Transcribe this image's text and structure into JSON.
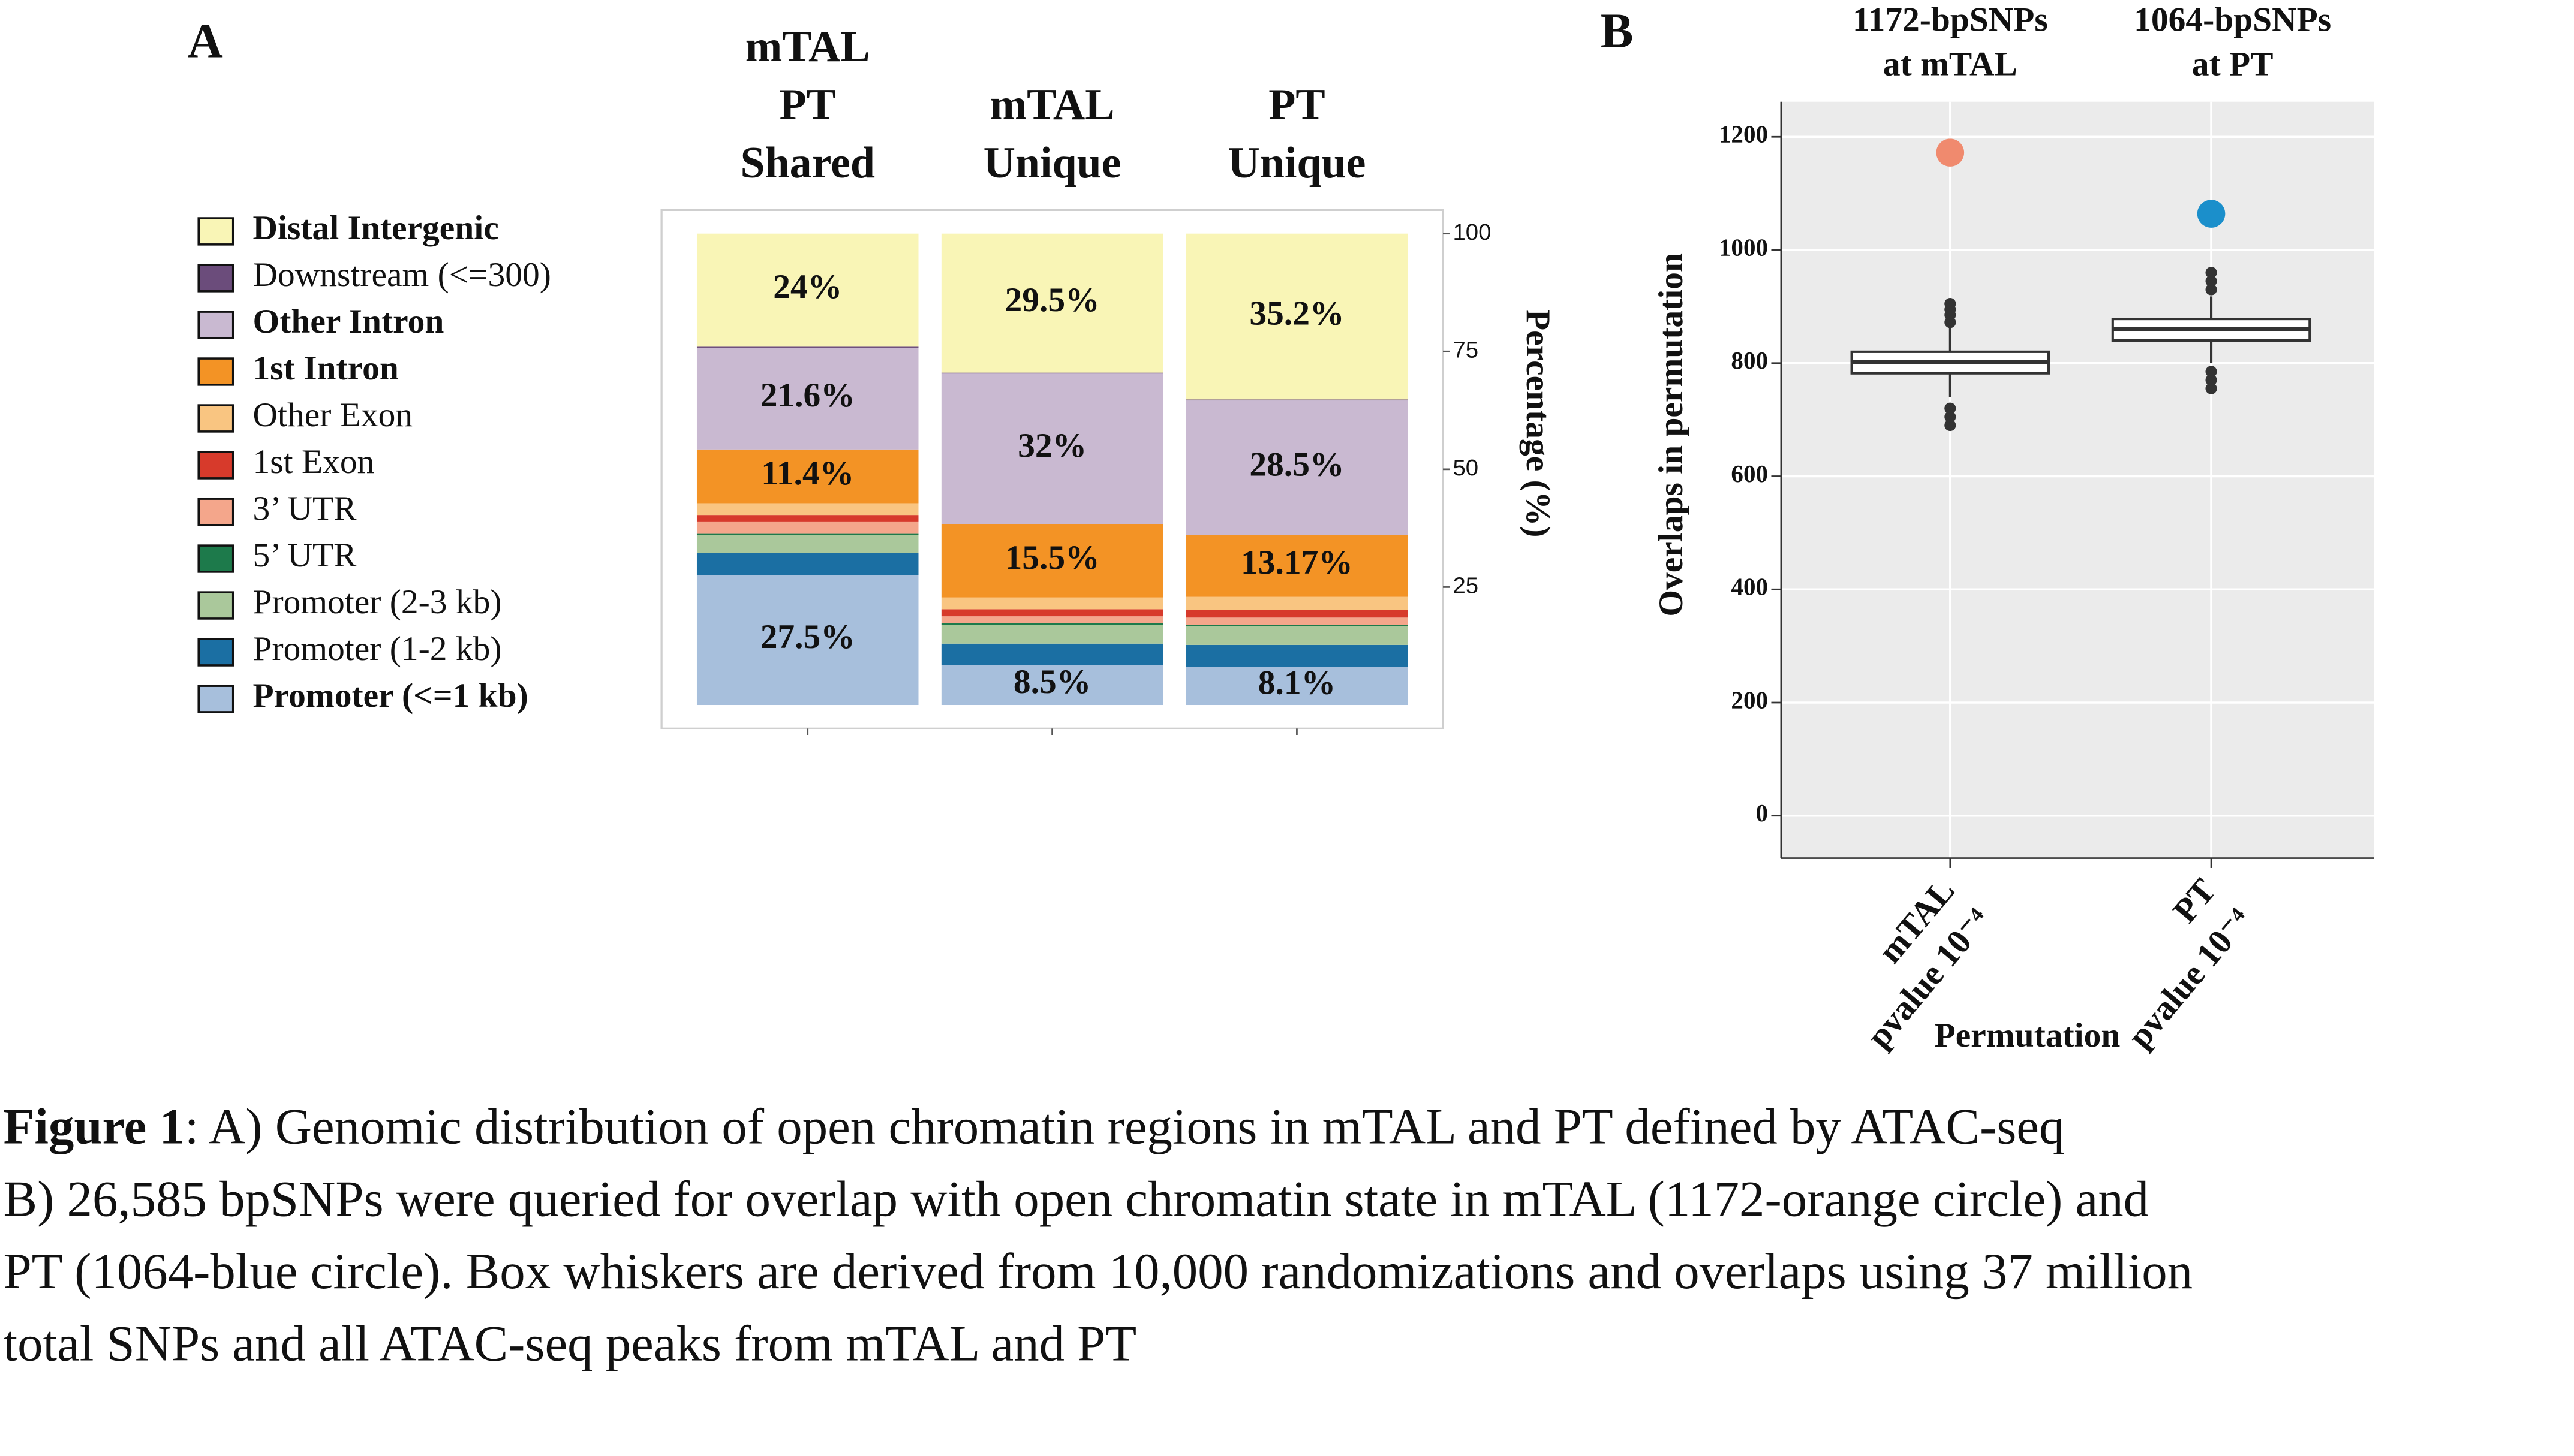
{
  "chart_data": [
    {
      "type": "stacked_bar",
      "panel": "A",
      "categories": [
        [
          "mTAL",
          "PT",
          "Shared"
        ],
        [
          "mTAL",
          "Unique"
        ],
        [
          "PT",
          "Unique"
        ]
      ],
      "series": [
        {
          "name": "Promoter (<=1 kb)",
          "color": "#a7bfdc",
          "values": [
            27.5,
            8.5,
            8.1
          ],
          "value_labels": [
            "27.5%",
            "8.5%",
            "8.1%"
          ]
        },
        {
          "name": "Promoter (1-2 kb)",
          "color": "#1b6fa3",
          "values": [
            4.8,
            4.5,
            4.63
          ]
        },
        {
          "name": "Promoter (2-3 kb)",
          "color": "#aac89b",
          "values": [
            3.7,
            4.0,
            4.0
          ]
        },
        {
          "name": "5’ UTR",
          "color": "#1d7a4b",
          "values": [
            0.3,
            0.3,
            0.3
          ]
        },
        {
          "name": "3’ UTR",
          "color": "#f4a68b",
          "values": [
            2.5,
            1.5,
            1.5
          ]
        },
        {
          "name": "1st Exon",
          "color": "#d73a2b",
          "values": [
            1.5,
            1.5,
            1.6
          ]
        },
        {
          "name": "Other Exon",
          "color": "#f9c581",
          "values": [
            2.5,
            2.5,
            2.8
          ]
        },
        {
          "name": "1st Intron",
          "color": "#f39325",
          "values": [
            11.4,
            15.5,
            13.17
          ],
          "value_labels": [
            "11.4%",
            "15.5%",
            "13.17%"
          ]
        },
        {
          "name": "Other Intron",
          "color": "#c9b9d1",
          "values": [
            21.6,
            32,
            28.5
          ],
          "value_labels": [
            "21.6%",
            "32%",
            "28.5%"
          ]
        },
        {
          "name": "Downstream (<=300)",
          "color": "#6b4c7b",
          "values": [
            0.2,
            0.2,
            0.2
          ]
        },
        {
          "name": "Distal Intergenic",
          "color": "#f9f5b6",
          "values": [
            24,
            29.5,
            35.2
          ],
          "value_labels": [
            "24%",
            "29.5%",
            "35.2%"
          ]
        }
      ],
      "ylabel": "Percentage (%)",
      "ylim": [
        -5,
        105
      ],
      "yticks": [
        25,
        50,
        75,
        100
      ]
    },
    {
      "type": "box",
      "panel": "B",
      "categories": [
        [
          "mTAL",
          "pvalue 10⁻⁴"
        ],
        [
          "PT",
          "pvalue 10⁻⁴"
        ]
      ],
      "annotations": [
        [
          "1172-bpSNPs",
          "at mTAL"
        ],
        [
          "1064-bpSNPs",
          "at PT"
        ]
      ],
      "boxes": [
        {
          "whislo": 740,
          "q1": 782,
          "med": 802,
          "q3": 820,
          "whishi": 862,
          "fliers": [
            690,
            705,
            720,
            872,
            885,
            895,
            905
          ]
        },
        {
          "whislo": 800,
          "q1": 840,
          "med": 860,
          "q3": 878,
          "whishi": 918,
          "fliers": [
            755,
            770,
            785,
            930,
            945,
            960
          ]
        }
      ],
      "points": {
        "values": [
          1172,
          1064
        ],
        "colors": [
          "#f08a6e",
          "#1b8fcb"
        ]
      },
      "xlabel": "Permutation",
      "ylabel": "Overlaps in permutation",
      "ylim": [
        -75,
        1262
      ],
      "yticks": [
        0,
        200,
        400,
        600,
        800,
        1000,
        1200
      ],
      "grid": true
    }
  ],
  "caption": {
    "label": "Figure 1",
    "lines": [
      ": A) Genomic distribution of open chromatin regions in mTAL and PT defined by ATAC-seq",
      "B) 26,585 bpSNPs were queried for overlap with open chromatin state in mTAL (1172-orange circle) and",
      "PT (1064-blue circle). Box whiskers are derived from 10,000 randomizations and overlaps using 37 million",
      "total SNPs and all ATAC-seq peaks from mTAL and PT"
    ]
  }
}
